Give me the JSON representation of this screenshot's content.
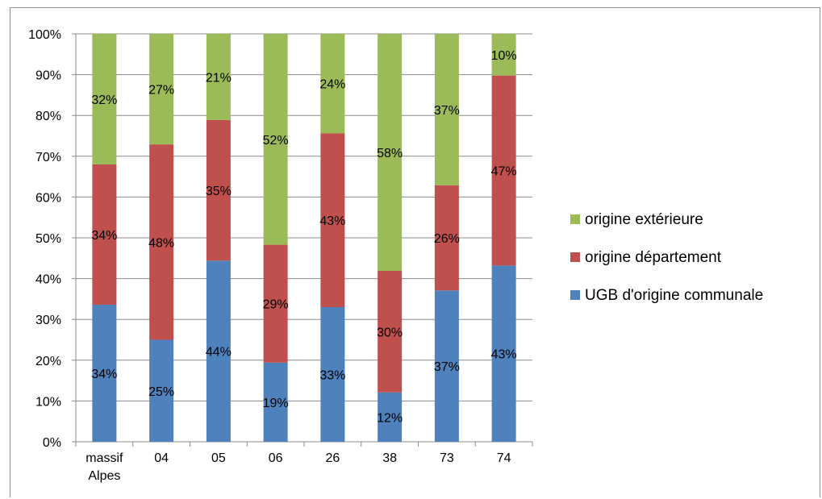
{
  "chart_data": {
    "type": "bar",
    "stacked": true,
    "percent_stacked": true,
    "categories": [
      [
        "massif",
        "Alpes"
      ],
      [
        "04"
      ],
      [
        "05"
      ],
      [
        "06"
      ],
      [
        "26"
      ],
      [
        "38"
      ],
      [
        "73"
      ],
      [
        "74"
      ]
    ],
    "series": [
      {
        "name": "UGB d'origine communale",
        "color": "#4f81bd",
        "values": [
          33.6,
          25,
          44.4,
          19.4,
          33,
          12.1,
          37.1,
          43.2
        ],
        "labels": [
          "34%",
          "25%",
          "44%",
          "19%",
          "33%",
          "12%",
          "37%",
          "43%"
        ]
      },
      {
        "name": "origine département",
        "color": "#c0504d",
        "values": [
          34.4,
          47.9,
          34.5,
          28.9,
          42.6,
          29.8,
          25.8,
          46.6
        ],
        "labels": [
          "34%",
          "48%",
          "35%",
          "29%",
          "43%",
          "30%",
          "26%",
          "47%"
        ]
      },
      {
        "name": "origine extérieure",
        "color": "#9bbb59",
        "values": [
          32,
          27.1,
          21.1,
          51.7,
          24.4,
          58.1,
          37.1,
          10.2
        ],
        "labels": [
          "32%",
          "27%",
          "21%",
          "52%",
          "24%",
          "58%",
          "37%",
          "10%"
        ]
      }
    ],
    "y_ticks": [
      "0%",
      "10%",
      "20%",
      "30%",
      "40%",
      "50%",
      "60%",
      "70%",
      "80%",
      "90%",
      "100%"
    ],
    "ylim": [
      0,
      100
    ],
    "grid": true,
    "legend_position": "right"
  }
}
